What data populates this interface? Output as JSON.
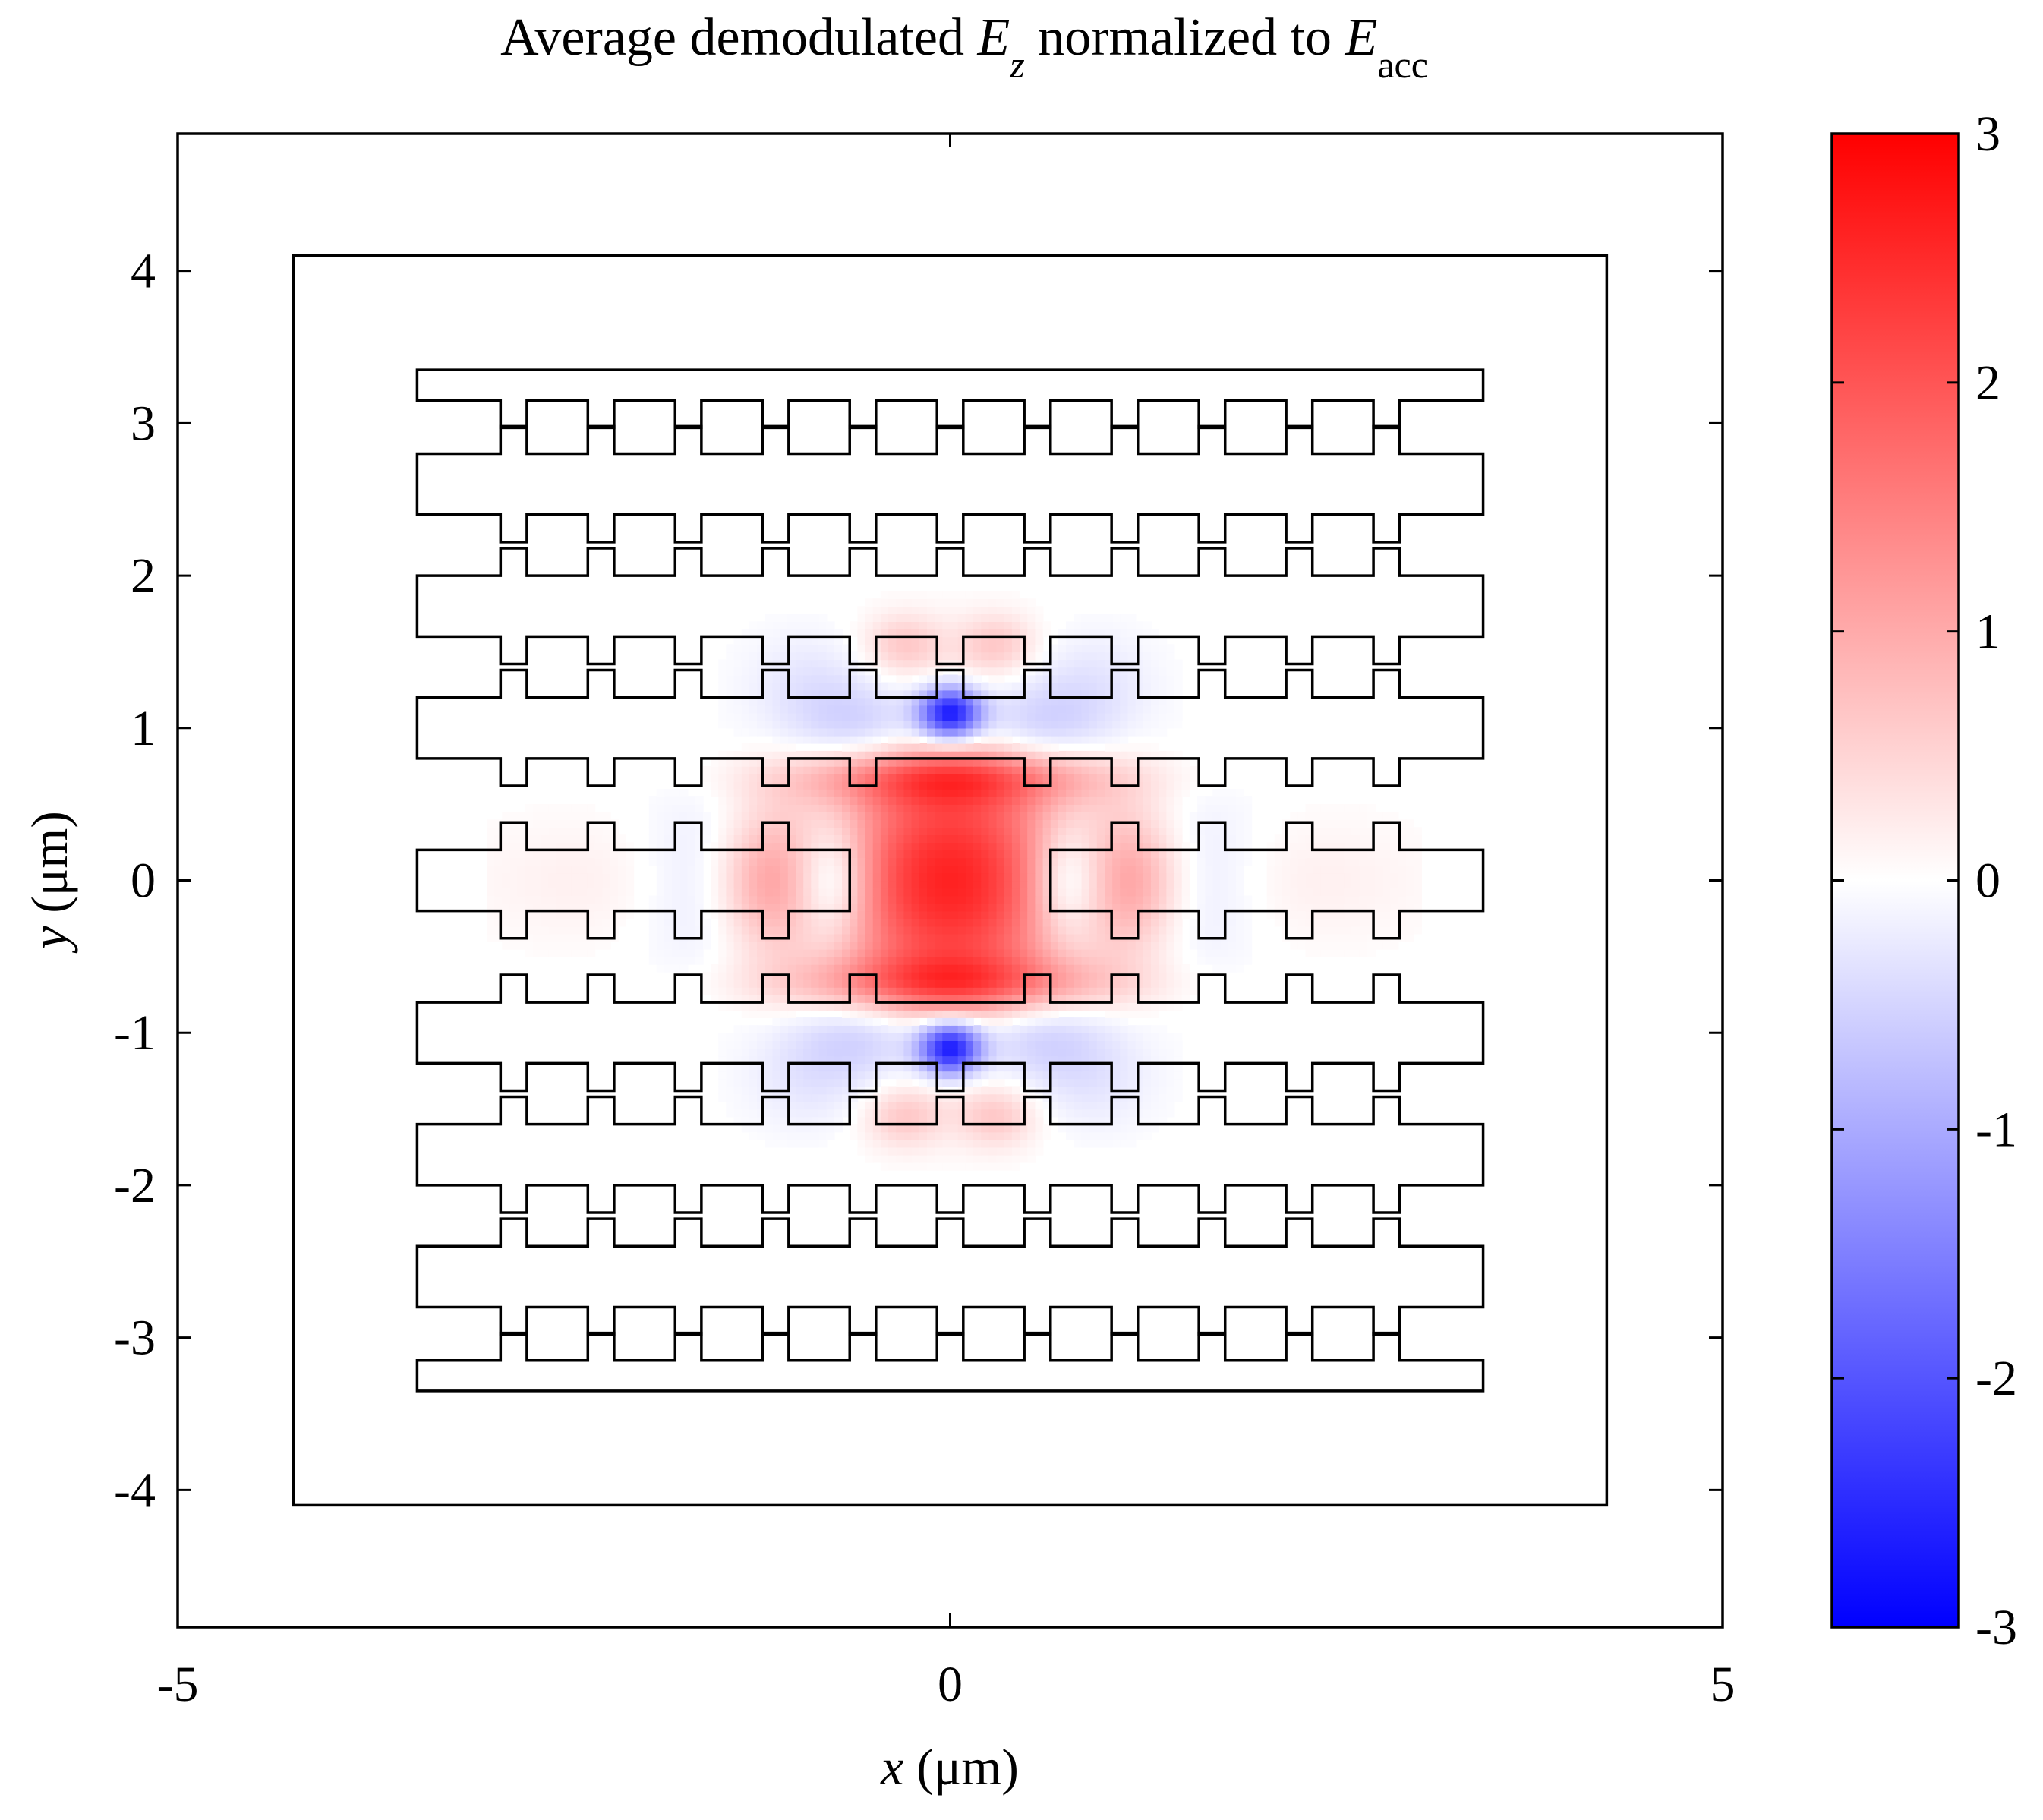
{
  "chart_data": {
    "type": "heatmap",
    "title": {
      "prefix": "Average demodulated ",
      "field_symbol": "E",
      "field_subscript": "z",
      "middle": " normalized to ",
      "norm_symbol": "E",
      "norm_subscript": "acc"
    },
    "xlabel": {
      "var": "x",
      "unit": " (μm)"
    },
    "ylabel": {
      "var": "y",
      "unit": " (μm)"
    },
    "xlim": [
      -5,
      5
    ],
    "ylim": [
      -4.9,
      4.9
    ],
    "x_ticks": [
      -5,
      0,
      5
    ],
    "x_tick_labels": [
      "-5",
      "0",
      "5"
    ],
    "y_ticks": [
      -4,
      -3,
      -2,
      -1,
      0,
      1,
      2,
      3,
      4
    ],
    "y_tick_labels": [
      "-4",
      "-3",
      "-2",
      "-1",
      "0",
      "1",
      "2",
      "3",
      "4"
    ],
    "colorbar": {
      "range": [
        -3,
        3
      ],
      "ticks": [
        -3,
        -2,
        -1,
        0,
        1,
        2,
        3
      ],
      "tick_labels": [
        "-3",
        "-2",
        "-1",
        "0",
        "1",
        "2",
        "3"
      ],
      "colormap": [
        "#0000ff",
        "#ffffff",
        "#ff0000"
      ]
    },
    "outer_box": {
      "x": [
        -5,
        5
      ],
      "y": [
        -4.9,
        4.9
      ]
    },
    "inner_box": {
      "x": [
        -4.25,
        4.25
      ],
      "y": [
        -4.1,
        4.1
      ]
    },
    "structure": {
      "x_extent": [
        -3.45,
        3.45
      ],
      "tooth_period_um": 0.565,
      "tooth_width_um": 0.17,
      "tooth_height_um": 0.18,
      "bars": [
        {
          "name": "top-bar",
          "center_y": 3.25,
          "teeth": "down"
        },
        {
          "name": "bar-2.6",
          "center_y": 2.6,
          "teeth": "both"
        },
        {
          "name": "bar-1.8",
          "center_y": 1.8,
          "teeth": "both"
        },
        {
          "name": "bar-1.0",
          "center_y": 1.0,
          "teeth": "both",
          "gap_bottom_center": true
        },
        {
          "name": "bar-0",
          "center_y": 0.0,
          "teeth": "both",
          "split_center": [
            -0.65,
            0.65
          ]
        },
        {
          "name": "bar--1.0",
          "center_y": -1.0,
          "teeth": "both",
          "gap_top_center": true
        },
        {
          "name": "bar--1.8",
          "center_y": -1.8,
          "teeth": "both"
        },
        {
          "name": "bar--2.6",
          "center_y": -2.6,
          "teeth": "both"
        },
        {
          "name": "bottom-bar",
          "center_y": -3.25,
          "teeth": "up"
        }
      ]
    },
    "field_features": [
      {
        "x": 0,
        "y": 0.0,
        "sx": 0.55,
        "sy": 0.62,
        "value": 2.6
      },
      {
        "x": 0,
        "y": 0.68,
        "sx": 0.72,
        "sy": 0.13,
        "value": 1.3
      },
      {
        "x": 0,
        "y": -0.68,
        "sx": 0.72,
        "sy": 0.13,
        "value": 1.3
      },
      {
        "x": 0,
        "y": 1.1,
        "sx": 0.14,
        "sy": 0.12,
        "value": -2.7
      },
      {
        "x": 0,
        "y": -1.1,
        "sx": 0.14,
        "sy": 0.12,
        "value": -2.7
      },
      {
        "x": -0.5,
        "y": 1.0,
        "sx": 0.35,
        "sy": 0.22,
        "value": -0.8
      },
      {
        "x": 0.5,
        "y": 1.0,
        "sx": 0.35,
        "sy": 0.22,
        "value": -0.8
      },
      {
        "x": -0.5,
        "y": -1.0,
        "sx": 0.35,
        "sy": 0.22,
        "value": -0.8
      },
      {
        "x": 0.5,
        "y": -1.0,
        "sx": 0.35,
        "sy": 0.22,
        "value": -0.8
      },
      {
        "x": -0.75,
        "y": 0.0,
        "sx": 0.17,
        "sy": 0.28,
        "value": -1.0
      },
      {
        "x": 0.75,
        "y": 0.0,
        "sx": 0.17,
        "sy": 0.28,
        "value": -1.0
      },
      {
        "x": -1.2,
        "y": 0.0,
        "sx": 0.22,
        "sy": 0.32,
        "value": 0.9
      },
      {
        "x": 1.2,
        "y": 0.0,
        "sx": 0.22,
        "sy": 0.32,
        "value": 0.9
      },
      {
        "x": -0.3,
        "y": 1.55,
        "sx": 0.18,
        "sy": 0.14,
        "value": 0.6
      },
      {
        "x": 0.3,
        "y": 1.55,
        "sx": 0.18,
        "sy": 0.14,
        "value": 0.6
      },
      {
        "x": -0.3,
        "y": -1.55,
        "sx": 0.18,
        "sy": 0.14,
        "value": 0.6
      },
      {
        "x": 0.3,
        "y": -1.55,
        "sx": 0.18,
        "sy": 0.14,
        "value": 0.6
      },
      {
        "x": -1.6,
        "y": 0.0,
        "sx": 0.3,
        "sy": 0.45,
        "value": -0.35
      },
      {
        "x": 1.6,
        "y": 0.0,
        "sx": 0.3,
        "sy": 0.45,
        "value": -0.35
      },
      {
        "x": -2.3,
        "y": 0.0,
        "sx": 0.6,
        "sy": 0.3,
        "value": 0.18
      },
      {
        "x": 2.3,
        "y": 0.0,
        "sx": 0.6,
        "sy": 0.3,
        "value": 0.18
      },
      {
        "x": -0.9,
        "y": 1.3,
        "sx": 0.3,
        "sy": 0.25,
        "value": -0.3
      },
      {
        "x": 0.9,
        "y": 1.3,
        "sx": 0.3,
        "sy": 0.25,
        "value": -0.3
      },
      {
        "x": -0.9,
        "y": -1.3,
        "sx": 0.3,
        "sy": 0.25,
        "value": -0.3
      },
      {
        "x": 0.9,
        "y": -1.3,
        "sx": 0.3,
        "sy": 0.25,
        "value": -0.3
      }
    ]
  }
}
